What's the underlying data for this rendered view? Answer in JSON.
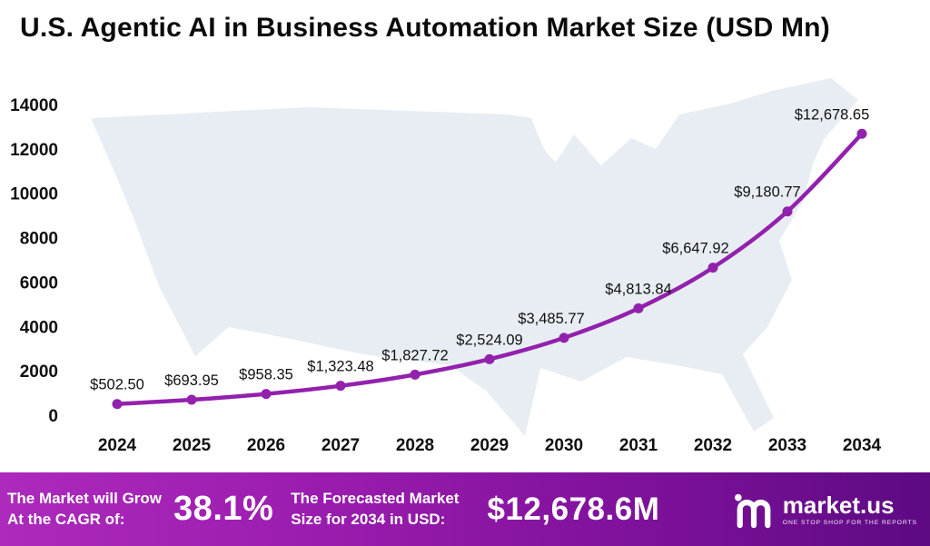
{
  "title": "U.S. Agentic AI in Business Automation Market Size (USD Mn)",
  "chart_data": {
    "type": "line",
    "title": "U.S. Agentic AI in Business Automation Market Size (USD Mn)",
    "x": [
      2024,
      2025,
      2026,
      2027,
      2028,
      2029,
      2030,
      2031,
      2032,
      2033,
      2034
    ],
    "values": [
      502.5,
      693.95,
      958.35,
      1323.48,
      1827.72,
      2524.09,
      3485.77,
      4813.84,
      6647.92,
      9180.77,
      12678.65
    ],
    "point_labels": [
      "$502.50",
      "$693.95",
      "$958.35",
      "$1,323.48",
      "$1,827.72",
      "$2,524.09",
      "$3,485.77",
      "$4,813.84",
      "$6,647.92",
      "$9,180.77",
      "$12,678.65"
    ],
    "xlabel": "",
    "ylabel": "",
    "ylim": [
      0,
      14000
    ],
    "ytick_step": 2000,
    "grid": false,
    "legend": "none",
    "line_color": "#9221ad",
    "marker_color": "#9221ad"
  },
  "banner": {
    "cagr_label_line1": "The Market will Grow",
    "cagr_label_line2": "At the CAGR of:",
    "cagr_value": "38.1%",
    "forecast_label_line1": "The Forecasted Market",
    "forecast_label_line2": "Size for 2034 in USD:",
    "forecast_value": "$12,678.6M",
    "logo_text": "market.us",
    "logo_tagline": "ONE STOP SHOP FOR THE REPORTS"
  },
  "colors": {
    "line": "#9221ad",
    "banner_gradient_start": "#ac2abc",
    "banner_gradient_end": "#5d0a83",
    "map_silhouette": "#e8edf3",
    "text": "#0b0b0b"
  }
}
